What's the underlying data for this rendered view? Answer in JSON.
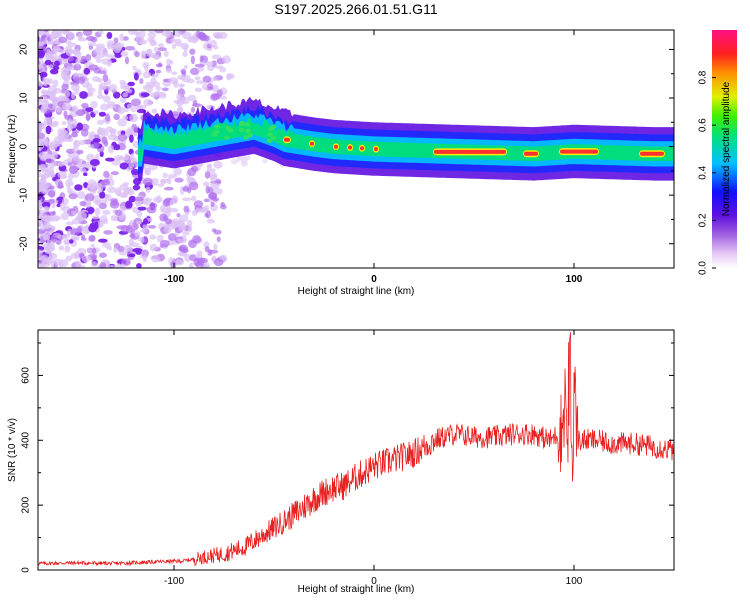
{
  "title": "S197.2025.266.01.51.G11",
  "chart_data": [
    {
      "type": "heatmap",
      "xlabel": "Height of straight line (km)",
      "ylabel": "Frequency (Hz)",
      "xlim": [
        -168,
        150
      ],
      "ylim": [
        -25,
        24
      ],
      "xticks": [
        -100,
        0,
        100
      ],
      "yticks": [
        -20,
        -10,
        0,
        10,
        20
      ],
      "xtick_labels": [
        "-100",
        "0",
        "100"
      ],
      "ytick_labels": [
        "-20",
        "-10",
        "0",
        "10",
        "20"
      ],
      "colorbar": {
        "label": "Normalized spectral amplitude",
        "range": [
          0,
          1
        ],
        "ticks": [
          0,
          0.2,
          0.4,
          0.6,
          0.8
        ],
        "tick_labels": [
          "0.0",
          "0.2",
          "0.4",
          "0.6",
          "0.8"
        ],
        "colors": [
          "#ffffff",
          "#ddaaf0",
          "#8a2be2",
          "#1a1aff",
          "#00ccff",
          "#00e070",
          "#ffee00",
          "#ff3030",
          "#ff1080"
        ]
      },
      "ridge": {
        "description_points_x": [
          -115,
          -100,
          -80,
          -60,
          -50,
          -45,
          -30,
          -20,
          0,
          40,
          80,
          100,
          140,
          150
        ],
        "description_points_y": [
          2,
          1,
          2.5,
          4,
          2.5,
          1.5,
          0.5,
          0,
          -0.5,
          -1,
          -1.5,
          -1,
          -1.5,
          -1.5
        ]
      },
      "scatter_extent_x": [
        -168,
        -75
      ],
      "scatter_extent_y": [
        -25,
        24
      ]
    },
    {
      "type": "line",
      "xlabel": "Height of straight line (km)",
      "ylabel": "SNR (10 * v/v)",
      "xlim": [
        -168,
        150
      ],
      "ylim": [
        0,
        740
      ],
      "xticks": [
        -100,
        0,
        100
      ],
      "yticks": [
        0,
        200,
        400,
        600
      ],
      "xtick_labels": [
        "-100",
        "0",
        "100"
      ],
      "ytick_labels": [
        "0",
        "200",
        "400",
        "600"
      ],
      "color": "#e82020",
      "series": [
        {
          "name": "SNR",
          "x": [
            -168,
            -150,
            -130,
            -110,
            -95,
            -85,
            -75,
            -65,
            -55,
            -45,
            -38,
            -30,
            -22,
            -15,
            -8,
            0,
            10,
            20,
            30,
            40,
            50,
            60,
            70,
            80,
            88,
            94,
            98,
            102,
            110,
            120,
            130,
            140,
            150
          ],
          "values": [
            20,
            22,
            20,
            25,
            28,
            40,
            50,
            70,
            110,
            150,
            180,
            220,
            250,
            260,
            290,
            320,
            340,
            360,
            400,
            420,
            410,
            410,
            420,
            420,
            400,
            430,
            720,
            400,
            400,
            390,
            390,
            380,
            370
          ]
        }
      ]
    }
  ]
}
